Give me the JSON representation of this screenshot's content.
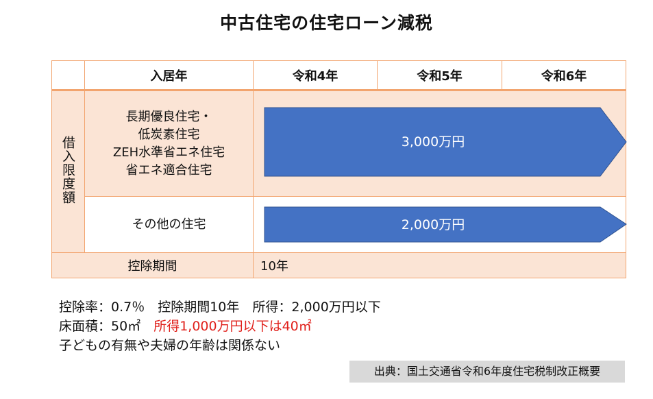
{
  "title": "中古住宅の住宅ローン減税",
  "table": {
    "header": {
      "blank": "",
      "move_in": "入居年",
      "years": [
        "令和4年",
        "令和5年",
        "令和6年"
      ]
    },
    "side_label": "借入限度額",
    "rows": [
      {
        "category_lines": [
          "長期優良住宅・",
          "低炭素住宅",
          "ZEH水準省エネ住宅",
          "省エネ適合住宅"
        ],
        "amount": "3,000万円"
      },
      {
        "category_lines": [
          "その他の住宅"
        ],
        "amount": "2,000万円"
      }
    ],
    "footer": {
      "label": "控除期間",
      "value": "10年"
    }
  },
  "notes": {
    "line1": "控除率：0.7％　控除期間10年　所得：2,000万円以下",
    "line2_prefix": "床面積：50㎡　",
    "line2_red": "所得1,000万円以下は40㎡",
    "line3": "子どもの有無や夫婦の年齢は関係ない"
  },
  "source": "出典：国土交通省令和6年度住宅税制改正概要",
  "colors": {
    "peach": "#fbe4d5",
    "border": "#f2a46e",
    "arrow": "#4472c4",
    "red": "#e0201b",
    "source_bg": "#d9d9d9"
  }
}
